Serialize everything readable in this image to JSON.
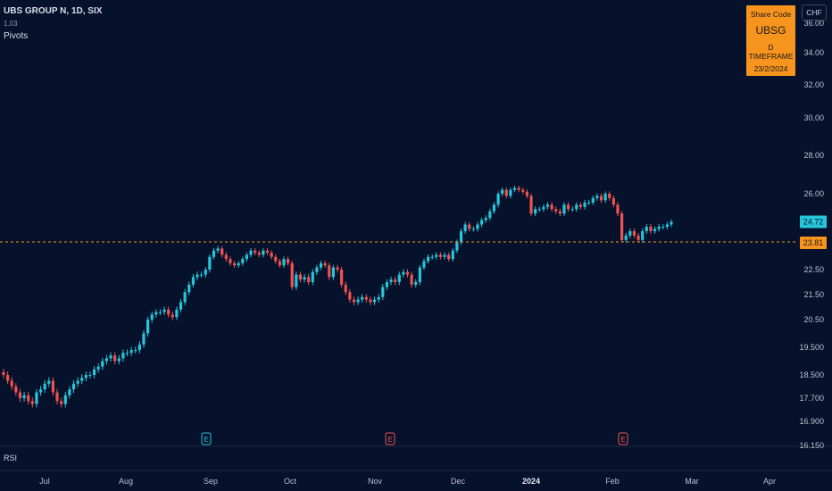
{
  "legend": {
    "symbol_line": "UBS GROUP N, 1D, SIX",
    "sub_line": "1.03",
    "indicator": "Pivots"
  },
  "info_box": {
    "title": "Share Code",
    "code": "UBSG",
    "timeframe": "D TIMEFRAME",
    "date": "23/2/2024"
  },
  "currency": "CHF",
  "rsi_label": "RSI",
  "colors": {
    "up": "#26c6da",
    "down": "#ef5350",
    "background": "#06112b",
    "pivot_line": "#f7941d",
    "last_price_bg": "#26c6da",
    "pivot_bg": "#f7941d"
  },
  "chart_data": {
    "type": "candlestick",
    "y_ticks": [
      "16.150",
      "16.900",
      "17.700",
      "18.500",
      "19.500",
      "20.50",
      "21.50",
      "22.50",
      "23.81",
      "24.72",
      "26.00",
      "28.00",
      "30.00",
      "32.00",
      "34.00",
      "36.00"
    ],
    "x_ticks": [
      "Jul",
      "Aug",
      "Sep",
      "Oct",
      "Nov",
      "Dec",
      "2024",
      "Feb",
      "Mar",
      "Apr"
    ],
    "last_price": 24.72,
    "pivot_level": 23.81,
    "earnings_markers": [
      {
        "date": "Sep",
        "label": "E",
        "color": "#26c6da"
      },
      {
        "date": "Oct-Nov",
        "label": "E",
        "color": "#ef5350"
      },
      {
        "date": "Feb",
        "label": "E",
        "color": "#ef5350"
      }
    ],
    "closes": [
      18.5,
      18.3,
      18.1,
      17.9,
      17.7,
      17.8,
      17.6,
      17.5,
      17.9,
      18.0,
      18.2,
      18.3,
      17.9,
      17.6,
      17.5,
      17.8,
      18.0,
      18.2,
      18.3,
      18.4,
      18.5,
      18.5,
      18.7,
      18.8,
      19.0,
      19.1,
      19.2,
      19.0,
      19.1,
      19.3,
      19.3,
      19.4,
      19.4,
      19.6,
      20.0,
      20.5,
      20.7,
      20.8,
      20.8,
      20.9,
      20.7,
      20.6,
      20.9,
      21.2,
      21.6,
      21.9,
      22.2,
      22.3,
      22.3,
      22.5,
      23.1,
      23.4,
      23.5,
      23.2,
      23.0,
      22.8,
      22.7,
      22.8,
      23.0,
      23.2,
      23.4,
      23.3,
      23.2,
      23.4,
      23.3,
      23.1,
      22.9,
      22.7,
      23.0,
      22.8,
      21.8,
      22.3,
      22.1,
      22.2,
      22.0,
      22.4,
      22.6,
      22.8,
      22.7,
      22.2,
      22.6,
      22.5,
      21.9,
      21.6,
      21.3,
      21.2,
      21.3,
      21.4,
      21.3,
      21.2,
      21.3,
      21.4,
      21.8,
      22.0,
      22.1,
      22.0,
      22.3,
      22.4,
      22.3,
      21.9,
      22.0,
      22.6,
      22.9,
      23.1,
      23.1,
      23.2,
      23.1,
      23.2,
      23.0,
      23.4,
      23.8,
      24.3,
      24.6,
      24.4,
      24.4,
      24.6,
      24.8,
      24.9,
      25.2,
      25.5,
      26.0,
      26.2,
      25.9,
      26.2,
      26.3,
      26.2,
      26.1,
      25.9,
      25.1,
      25.3,
      25.3,
      25.4,
      25.5,
      25.3,
      25.2,
      25.1,
      25.5,
      25.3,
      25.3,
      25.5,
      25.4,
      25.6,
      25.6,
      25.8,
      25.9,
      25.7,
      26.0,
      25.8,
      25.5,
      25.1,
      23.9,
      24.1,
      24.3,
      24.1,
      23.9,
      24.3,
      24.5,
      24.3,
      24.4,
      24.5,
      24.5,
      24.6,
      24.72
    ]
  }
}
